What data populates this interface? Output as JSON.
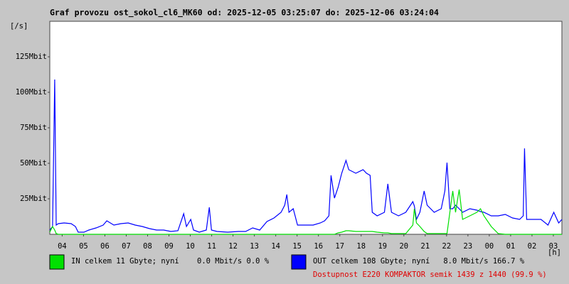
{
  "chart_data": {
    "type": "line",
    "title": "Graf provozu ost_sokol_cl6_MK60 od: 2025-12-05 03:25:07 do: 2025-12-06 03:24:04",
    "y_label": "[/s]",
    "x_label": "[h]",
    "note": "Dostupnost E220 KOMPAKTOR semik 1439 z 1440 (99.9 %)",
    "note_color": "#e00000",
    "xlim": [
      3.42,
      27.4
    ],
    "xticks": [
      {
        "value": 4,
        "label": "04"
      },
      {
        "value": 5,
        "label": "05"
      },
      {
        "value": 6,
        "label": "06"
      },
      {
        "value": 7,
        "label": "07"
      },
      {
        "value": 8,
        "label": "08"
      },
      {
        "value": 9,
        "label": "09"
      },
      10,
      11,
      12,
      13,
      14,
      15,
      16,
      17,
      18,
      19,
      20,
      21,
      22,
      23,
      {
        "value": 24,
        "label": "00"
      },
      {
        "value": 25,
        "label": "01"
      },
      {
        "value": 26,
        "label": "02"
      },
      {
        "value": 27,
        "label": "03"
      }
    ],
    "ylim": [
      0,
      150
    ],
    "yticks": [
      {
        "value": 25,
        "label": "25Mbit"
      },
      {
        "value": 50,
        "label": "50Mbit"
      },
      {
        "value": 75,
        "label": "75Mbit"
      },
      {
        "value": 100,
        "label": "100Mbit"
      },
      {
        "value": 125,
        "label": "125Mbit"
      }
    ],
    "x": [
      3.42,
      3.55,
      3.65,
      3.72,
      3.82,
      4.09,
      4.42,
      4.62,
      4.75,
      5.02,
      5.25,
      5.59,
      5.92,
      6.09,
      6.42,
      6.75,
      7.09,
      7.42,
      7.75,
      8.09,
      8.42,
      8.75,
      9.09,
      9.42,
      9.69,
      9.82,
      10.02,
      10.15,
      10.42,
      10.75,
      10.89,
      10.99,
      11.25,
      11.75,
      12.25,
      12.59,
      12.92,
      13.25,
      13.59,
      13.92,
      14.25,
      14.42,
      14.52,
      14.62,
      14.82,
      15.02,
      15.42,
      15.75,
      16.09,
      16.29,
      16.49,
      16.59,
      16.75,
      16.92,
      17.09,
      17.29,
      17.42,
      17.75,
      18.09,
      18.25,
      18.42,
      18.52,
      18.75,
      19.09,
      19.25,
      19.42,
      19.75,
      20.09,
      20.42,
      20.49,
      20.59,
      20.75,
      20.95,
      21.09,
      21.42,
      21.75,
      21.92,
      22.02,
      22.15,
      22.29,
      22.42,
      22.59,
      22.75,
      23.09,
      23.42,
      23.59,
      23.75,
      24.09,
      24.42,
      24.75,
      25.09,
      25.42,
      25.59,
      25.65,
      25.75,
      26.09,
      26.42,
      26.75,
      27.02,
      27.25,
      27.4
    ],
    "series": [
      {
        "name": "OUT celkem 108 Gbyte; nyní   8.0 Mbit/s 166.7 %",
        "color": "#0000ff",
        "values": [
          3,
          5.5,
          109,
          6.5,
          7.5,
          8,
          7.5,
          5.5,
          1.5,
          1.5,
          3,
          4.5,
          6.5,
          9.5,
          6.5,
          7.5,
          8,
          6.5,
          5.5,
          4,
          3,
          3,
          2,
          2.5,
          14.5,
          5.5,
          10.5,
          3,
          1.5,
          3,
          19,
          3,
          2,
          1.5,
          2,
          2,
          4.5,
          3,
          9,
          11.5,
          15.5,
          20.5,
          28,
          15.5,
          18,
          6.5,
          6.5,
          6.5,
          8,
          9.5,
          13,
          41.5,
          25.5,
          33,
          43,
          52,
          45.5,
          43,
          45.5,
          43,
          41.5,
          15.5,
          13,
          15.5,
          35.5,
          15.5,
          13,
          15.5,
          23,
          20,
          10.5,
          15.5,
          30.5,
          20.5,
          15.5,
          18,
          30.5,
          50.5,
          18,
          18,
          20.5,
          18,
          15.5,
          18,
          17,
          16,
          15.5,
          13,
          13,
          14,
          11.5,
          10.5,
          13,
          60.5,
          10.5,
          10.5,
          10.5,
          6.5,
          15.5,
          8,
          10.5
        ]
      },
      {
        "name": "IN celkem 11 Gbyte; nyní    0.0 Mbit/s 0.0 %",
        "color": "#00e000",
        "values": [
          1.5,
          5.5,
          3,
          0.5,
          0,
          0,
          0,
          0,
          0,
          0,
          0,
          0,
          0,
          0,
          0,
          0,
          0,
          0,
          0,
          0,
          0,
          0,
          0,
          0,
          0,
          0,
          0,
          0,
          0,
          0,
          0,
          0,
          0,
          0,
          0,
          0,
          0,
          0,
          0,
          0,
          0,
          0,
          0,
          0,
          0,
          0,
          0,
          0,
          0,
          0,
          0,
          0,
          0,
          1,
          1.5,
          2.5,
          2.5,
          2,
          2,
          2,
          2,
          2,
          1.5,
          1,
          1,
          0.5,
          0.5,
          0.5,
          6.5,
          18,
          8,
          5.5,
          2,
          0.5,
          0.5,
          0.5,
          0.5,
          0.5,
          15,
          30.5,
          15.5,
          31.5,
          10.5,
          13,
          15.5,
          18,
          13,
          5.5,
          0.5,
          0,
          0,
          0,
          0,
          0,
          0,
          0,
          0,
          0,
          0,
          0,
          0
        ]
      }
    ]
  }
}
